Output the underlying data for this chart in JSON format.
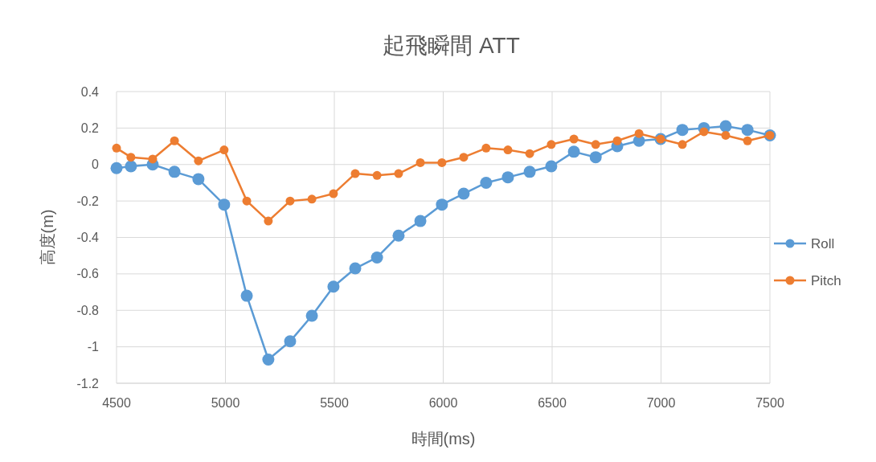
{
  "chart_data": {
    "type": "line",
    "title": "起飛瞬間 ATT",
    "xlabel": "時間(ms)",
    "ylabel": "高度(m)",
    "x": [
      4500,
      4566,
      4666,
      4766,
      4876,
      4994,
      5098,
      5197,
      5297,
      5397,
      5496,
      5596,
      5696,
      5795,
      5895,
      5994,
      6094,
      6197,
      6297,
      6397,
      6496,
      6600,
      6700,
      6799,
      6899,
      6998,
      7098,
      7197,
      7297,
      7397,
      7500
    ],
    "series": [
      {
        "name": "Roll",
        "color": "#5b9bd5",
        "values": [
          -0.02,
          -0.01,
          0,
          -0.04,
          -0.08,
          -0.22,
          -0.72,
          -1.07,
          -0.97,
          -0.83,
          -0.67,
          -0.57,
          -0.51,
          -0.39,
          -0.31,
          -0.22,
          -0.16,
          -0.1,
          -0.07,
          -0.04,
          -0.01,
          0.07,
          0.04,
          0.1,
          0.13,
          0.14,
          0.19,
          0.2,
          0.21,
          0.19,
          0.16
        ]
      },
      {
        "name": "Pitch",
        "color": "#ed7d31",
        "values": [
          0.09,
          0.04,
          0.03,
          0.13,
          0.02,
          0.08,
          -0.2,
          -0.31,
          -0.2,
          -0.19,
          -0.16,
          -0.05,
          -0.06,
          -0.05,
          0.01,
          0.01,
          0.04,
          0.09,
          0.08,
          0.06,
          0.11,
          0.14,
          0.11,
          0.13,
          0.17,
          0.14,
          0.11,
          0.18,
          0.16,
          0.13,
          0.16
        ]
      }
    ],
    "xlim": [
      4500,
      7500
    ],
    "xticks": [
      4500,
      5000,
      5500,
      6000,
      6500,
      7000,
      7500
    ],
    "ylim": [
      -1.2,
      0.4
    ],
    "yticks": [
      0.4,
      0.2,
      0,
      -0.2,
      -0.4,
      -0.6,
      -0.8,
      -1,
      -1.2
    ],
    "grid": true,
    "legend": "right",
    "marker": "circle",
    "line_style": "solid"
  }
}
